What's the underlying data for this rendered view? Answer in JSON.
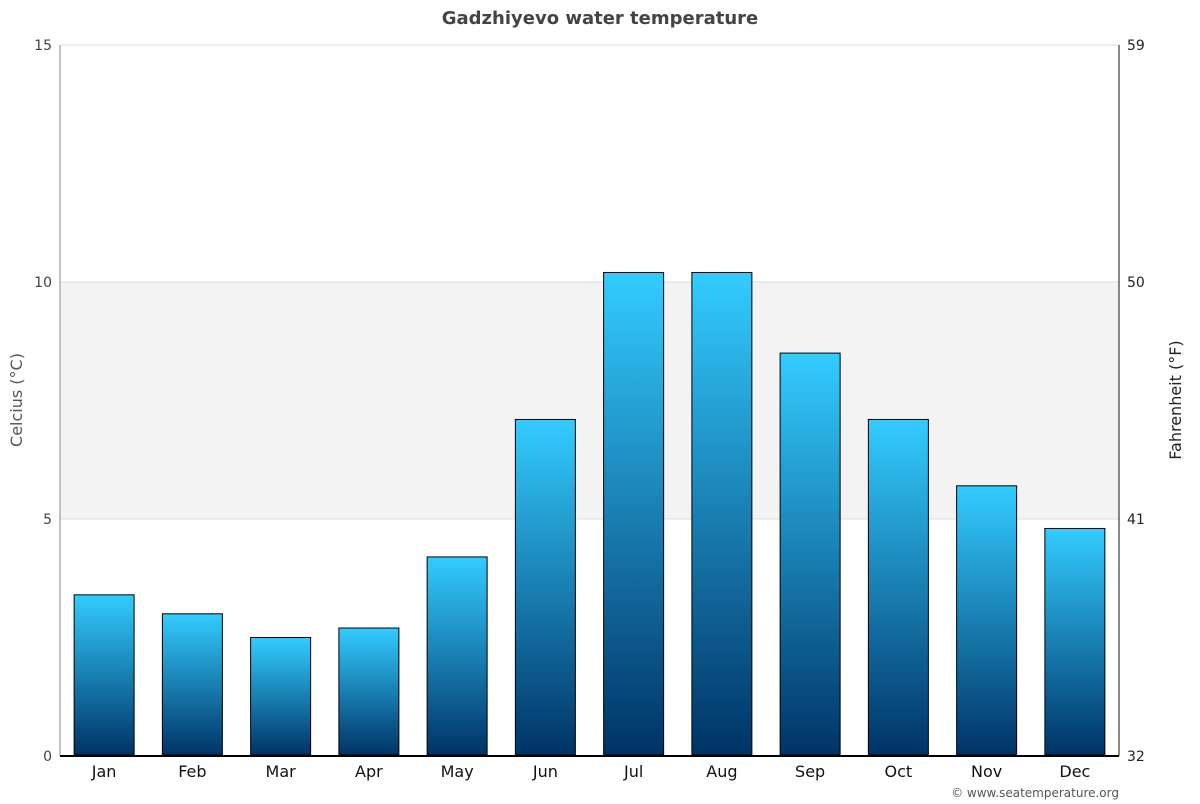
{
  "chart_data": {
    "type": "bar",
    "title": "Gadzhiyevo water temperature",
    "ylabel": "Celcius (°C)",
    "y2label": "Fahrenheit (°F)",
    "categories": [
      "Jan",
      "Feb",
      "Mar",
      "Apr",
      "May",
      "Jun",
      "Jul",
      "Aug",
      "Sep",
      "Oct",
      "Nov",
      "Dec"
    ],
    "values": [
      3.4,
      3.0,
      2.5,
      2.7,
      4.2,
      7.1,
      10.2,
      10.2,
      8.5,
      7.1,
      5.7,
      4.8
    ],
    "ylim": [
      0,
      15
    ],
    "yticks": [
      "0",
      "5",
      "10",
      "15"
    ],
    "y2ticks": [
      "32",
      "41",
      "50",
      "59"
    ],
    "grid": true,
    "highlight_band": [
      5,
      10
    ],
    "colors": {
      "bar_top": "#33ccff",
      "bar_bottom": "#003366",
      "band": "#f3f3f3"
    }
  },
  "footer": {
    "credit": "© www.seatemperature.org"
  }
}
